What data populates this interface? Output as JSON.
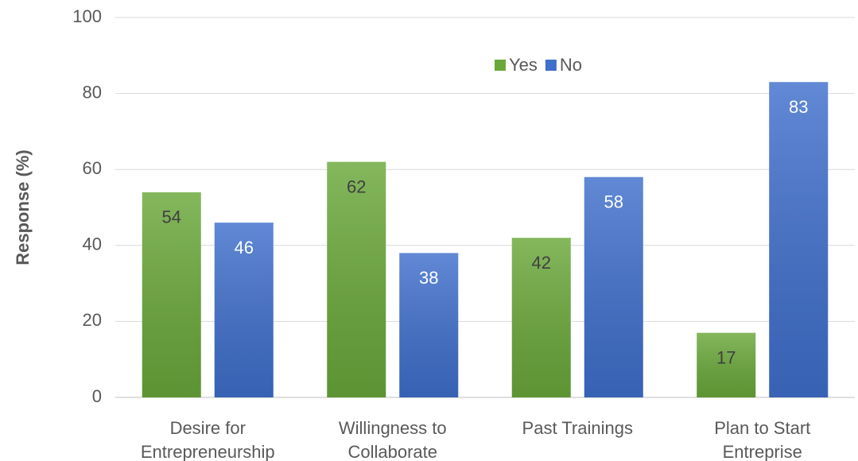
{
  "chart_data": {
    "type": "bar",
    "y_axis_label": "Response (%)",
    "categories": [
      [
        "Desire for",
        "Entrepreneurship"
      ],
      [
        "Willingness to",
        "Collaborate"
      ],
      [
        "Past Trainings"
      ],
      [
        "Plan to Start",
        "Entreprise"
      ]
    ],
    "series": [
      {
        "name": "Yes",
        "color": "#6aa83a",
        "values": [
          54,
          62,
          42,
          17
        ]
      },
      {
        "name": "No",
        "color": "#3f6fcc",
        "values": [
          46,
          38,
          58,
          83
        ]
      }
    ],
    "ylim": [
      0,
      100
    ],
    "yticks": [
      0,
      20,
      40,
      60,
      80,
      100
    ],
    "grid": true,
    "legend": "top"
  }
}
